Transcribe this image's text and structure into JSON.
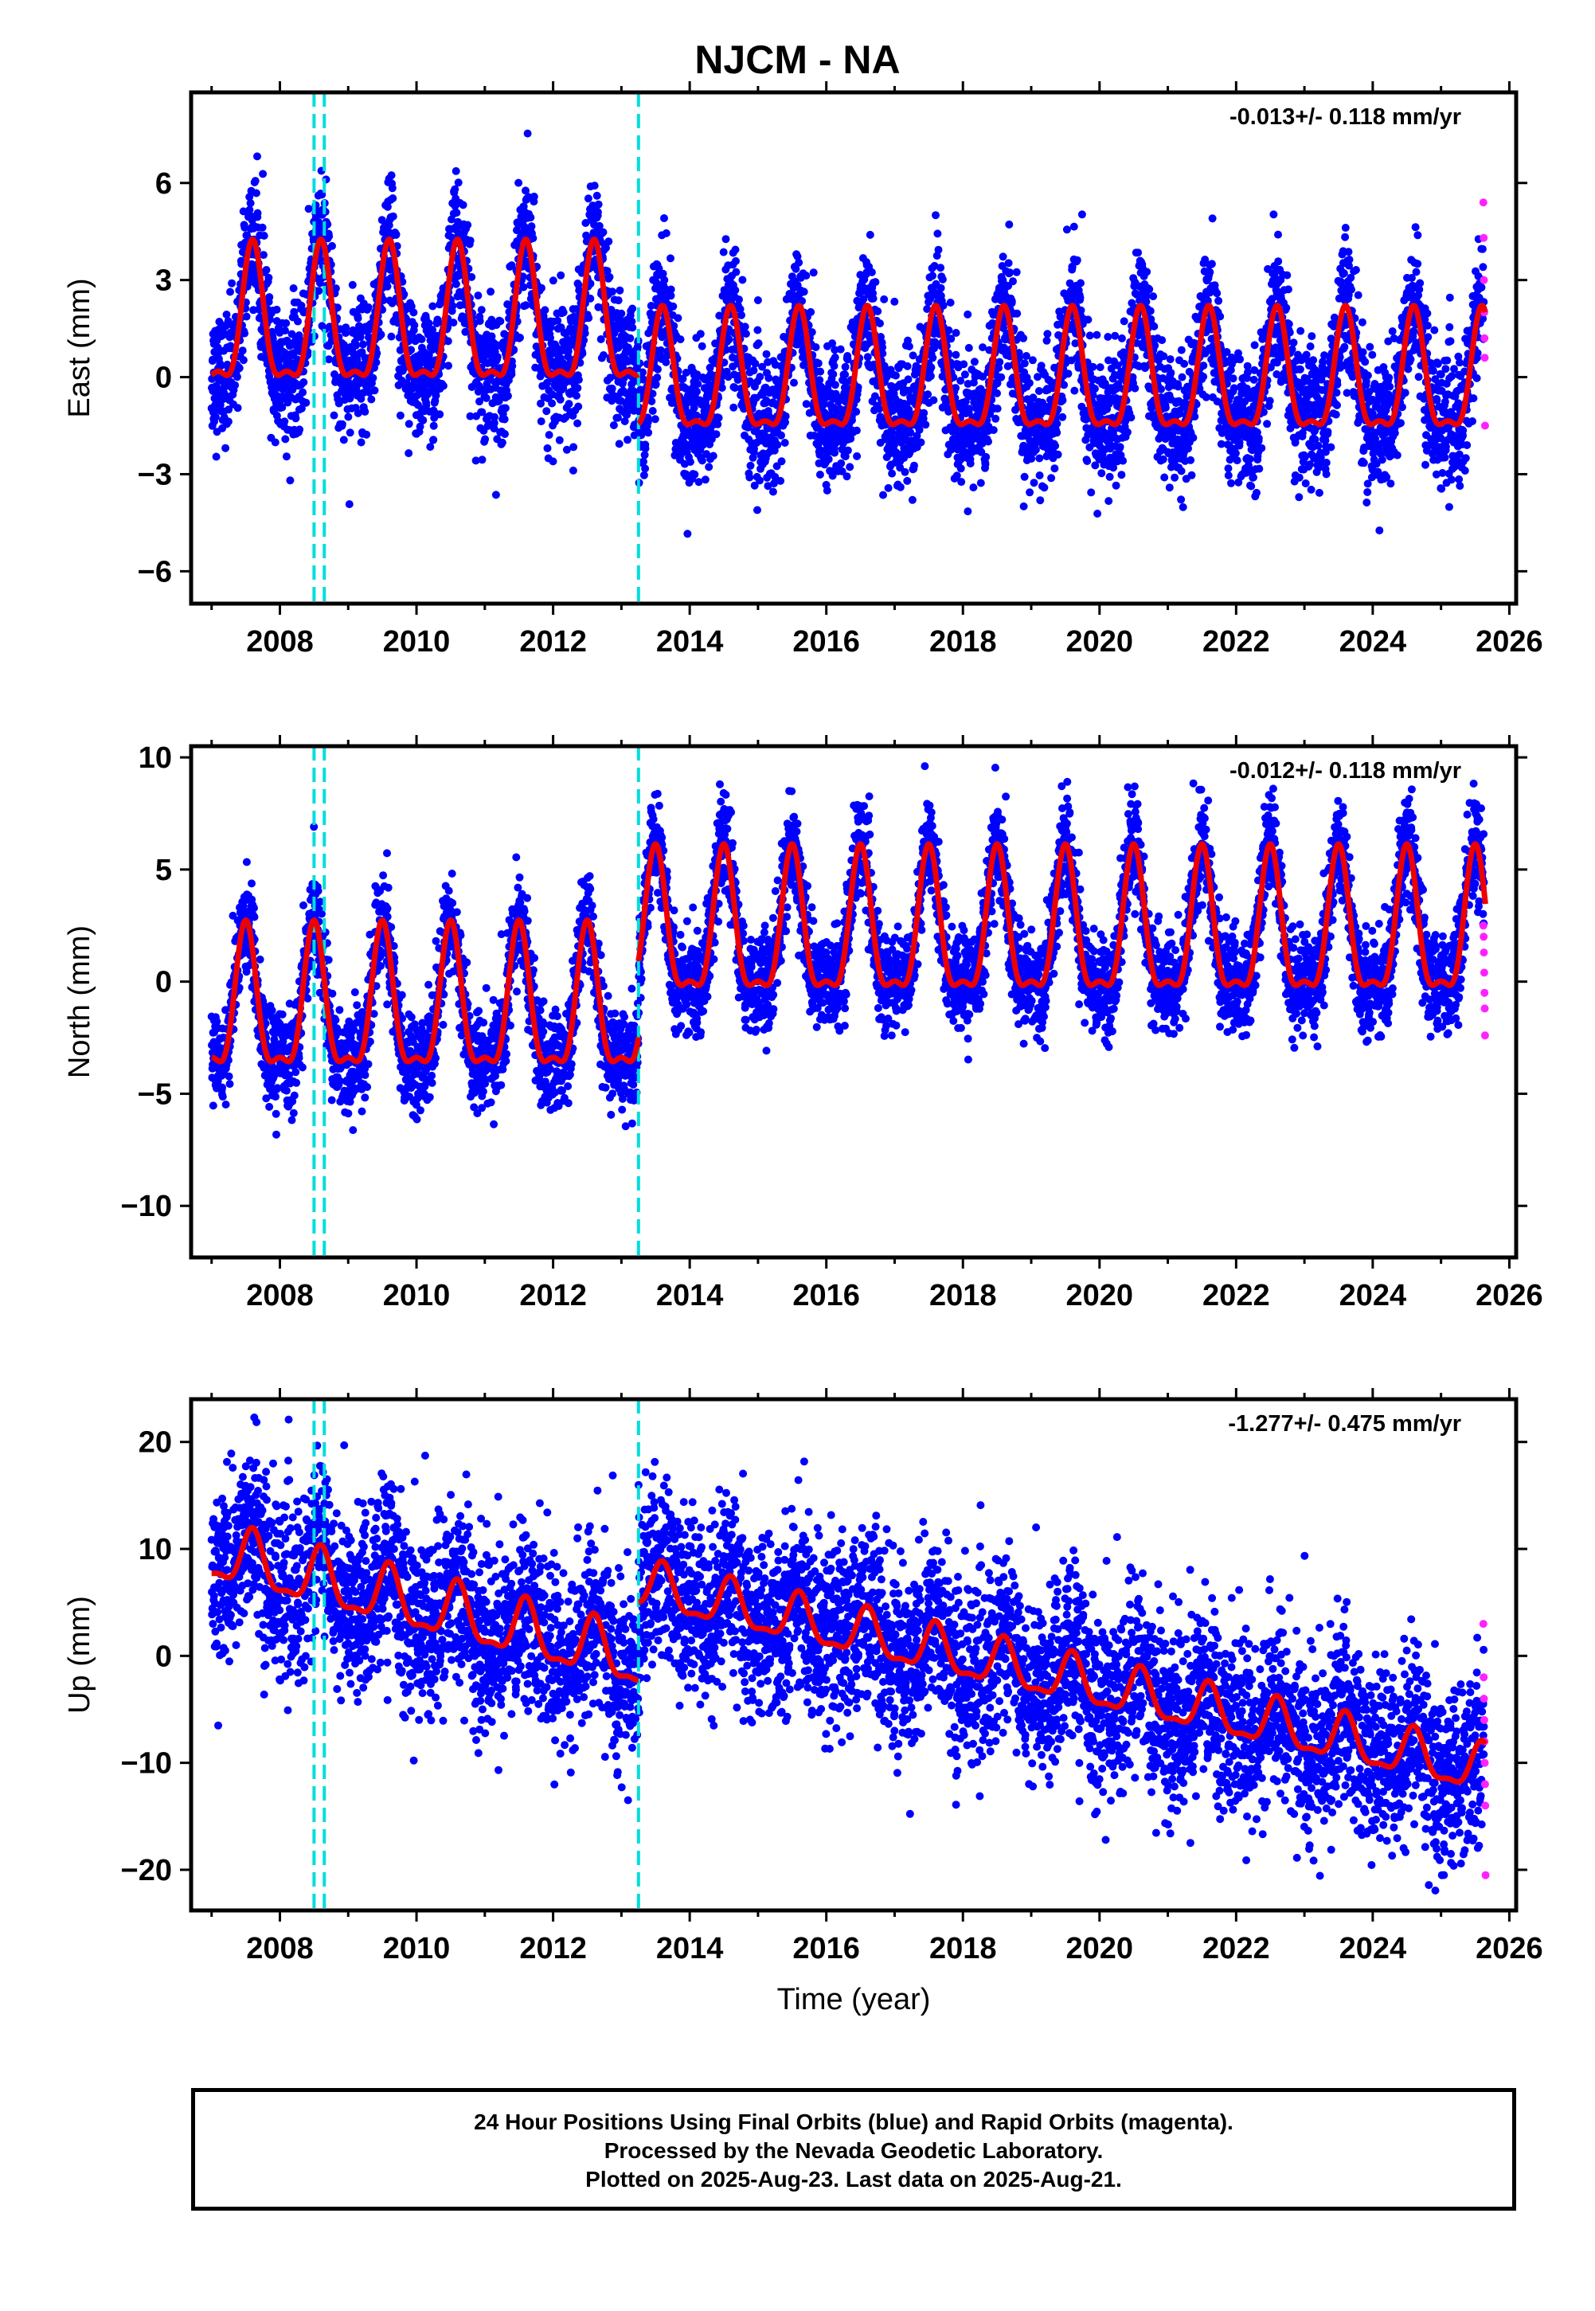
{
  "title": "NJCM - NA",
  "colors": {
    "final_orbits": "#0000ff",
    "rapid_orbits": "#ff22ff",
    "model": "#ee0000",
    "offset_line": "#00dddd"
  },
  "chart_data": [
    {
      "type": "scatter",
      "component": "East",
      "ylabel": "East (mm)",
      "xlabel": "",
      "ylim": [
        -7,
        8.8
      ],
      "yticks": [
        -6,
        -3,
        0,
        3,
        6
      ],
      "xlim": [
        2006.7,
        2026.1
      ],
      "xticks": [
        2008,
        2010,
        2012,
        2014,
        2016,
        2018,
        2020,
        2022,
        2024,
        2026
      ],
      "rate_annotation": "-0.013+/- 0.118 mm/yr",
      "offset_lines": [
        2008.5,
        2008.65,
        2013.25
      ],
      "model": {
        "segments": [
          {
            "start": 2007.0,
            "end": 2013.25,
            "mean": 1.5,
            "annual_amplitude": 2.4,
            "peak": 2007.6
          },
          {
            "start": 2013.25,
            "end": 2025.65,
            "mean": -0.2,
            "annual_amplitude": 2.1,
            "peak": 2013.6
          }
        ]
      },
      "scatter_sd": 1.0,
      "rapid_points_y": [
        5.4,
        4.3,
        3.0,
        2.0,
        1.2,
        0.6,
        -1.5
      ]
    },
    {
      "type": "scatter",
      "component": "North",
      "ylabel": "North (mm)",
      "xlabel": "",
      "ylim": [
        -12.3,
        10.5
      ],
      "yticks": [
        -10,
        -5,
        0,
        5,
        10
      ],
      "xlim": [
        2006.7,
        2026.1
      ],
      "xticks": [
        2008,
        2010,
        2012,
        2014,
        2016,
        2018,
        2020,
        2022,
        2024,
        2026
      ],
      "rate_annotation": "-0.012+/- 0.118 mm/yr",
      "offset_lines": [
        2008.5,
        2008.65,
        2013.25
      ],
      "model": {
        "segments": [
          {
            "start": 2007.0,
            "end": 2013.25,
            "mean": -1.4,
            "annual_amplitude": 3.6,
            "peak": 2007.5
          },
          {
            "start": 2013.25,
            "end": 2025.65,
            "mean": 2.0,
            "annual_amplitude": 3.6,
            "peak": 2013.5
          }
        ]
      },
      "scatter_sd": 1.1,
      "rapid_points_y": [
        2.5,
        2.0,
        1.3,
        0.4,
        -0.5,
        -1.2,
        -2.4
      ]
    },
    {
      "type": "scatter",
      "component": "Up",
      "ylabel": "Up (mm)",
      "xlabel": "Time (year)",
      "ylim": [
        -23.8,
        24
      ],
      "yticks": [
        -20,
        -10,
        0,
        10,
        20
      ],
      "xlim": [
        2006.7,
        2026.1
      ],
      "xticks": [
        2008,
        2010,
        2012,
        2014,
        2016,
        2018,
        2020,
        2022,
        2024,
        2026
      ],
      "rate_annotation": "-1.277+/- 0.475 mm/yr",
      "offset_lines": [
        2008.5,
        2008.65,
        2013.25
      ],
      "model": {
        "segments": [
          {
            "start": 2007.0,
            "end": 2013.25,
            "mean": 9.5,
            "rate": -1.6,
            "annual_amplitude": 3.0,
            "peak": 2007.6
          },
          {
            "start": 2013.25,
            "end": 2025.65,
            "mean": 6.5,
            "rate": -1.4,
            "annual_amplitude": 2.5,
            "peak": 2013.6
          }
        ]
      },
      "scatter_sd": 4.2,
      "rapid_points_y": [
        3,
        -2,
        -4,
        -6,
        -8,
        -10,
        -12,
        -14,
        -20.5
      ]
    }
  ],
  "footer": {
    "line1": "24 Hour Positions Using Final Orbits (blue) and Rapid Orbits (magenta).",
    "line2": "Processed by the Nevada Geodetic Laboratory.",
    "line3": "Plotted on 2025-Aug-23. Last data on 2025-Aug-21."
  }
}
